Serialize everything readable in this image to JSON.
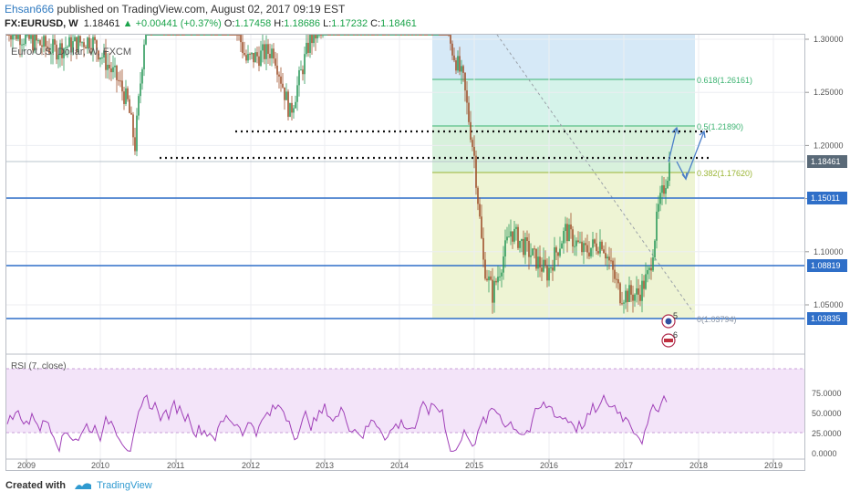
{
  "header": {
    "author": "Ehsan666",
    "published_text": " published on TradingView.com, August 02, 2017 09:19 EST",
    "symbol": "FX:EURUSD, W",
    "last": "1.18461",
    "change": "▲ +0.00441 (+0.37%)",
    "o_label": "O:",
    "o": "1.17458",
    "h_label": "H:",
    "h": "1.18686",
    "l_label": "L:",
    "l": "1.17232",
    "c_label": "C:",
    "c": "1.18461"
  },
  "chart": {
    "legend": "Euro/U.S. Dollar, W, FXCM",
    "price_ticks": [
      "1.30000",
      "1.25000",
      "1.20000",
      "1.15000",
      "1.10000",
      "1.05000"
    ],
    "price_badges": [
      {
        "label": "1.18461",
        "color": "#5a6a78"
      },
      {
        "label": "1.15011",
        "color": "#2f6fc8"
      },
      {
        "label": "1.08819",
        "color": "#2f6fc8"
      },
      {
        "label": "1.03835",
        "color": "#2f6fc8"
      }
    ],
    "fib_levels": [
      {
        "label": "0.618(1.26161)",
        "color": "#3cb371"
      },
      {
        "label": "0.5(1.21890)",
        "color": "#3cb371"
      },
      {
        "label": "0.382(1.17620)",
        "color": "#9ab534"
      },
      {
        "label": "0(1.03794)",
        "color": "#8c96a6"
      }
    ],
    "time_ticks": [
      "2009",
      "2010",
      "2011",
      "2012",
      "2013",
      "2014",
      "2015",
      "2016",
      "2017",
      "2018",
      "2019"
    ],
    "event_badges": [
      "5",
      "6"
    ]
  },
  "rsi": {
    "label": "RSI (7, close)",
    "ticks": [
      "75.0000",
      "50.0000",
      "25.0000",
      "0.0000"
    ]
  },
  "footer": {
    "created_with": "Created with",
    "brand": "TradingView"
  },
  "colors": {
    "up": "#2e9a5b",
    "down": "#a0522d",
    "rsi_line": "#a040b8",
    "rsi_band": "#f2e2f8",
    "hline": "#2f6fc8"
  }
}
